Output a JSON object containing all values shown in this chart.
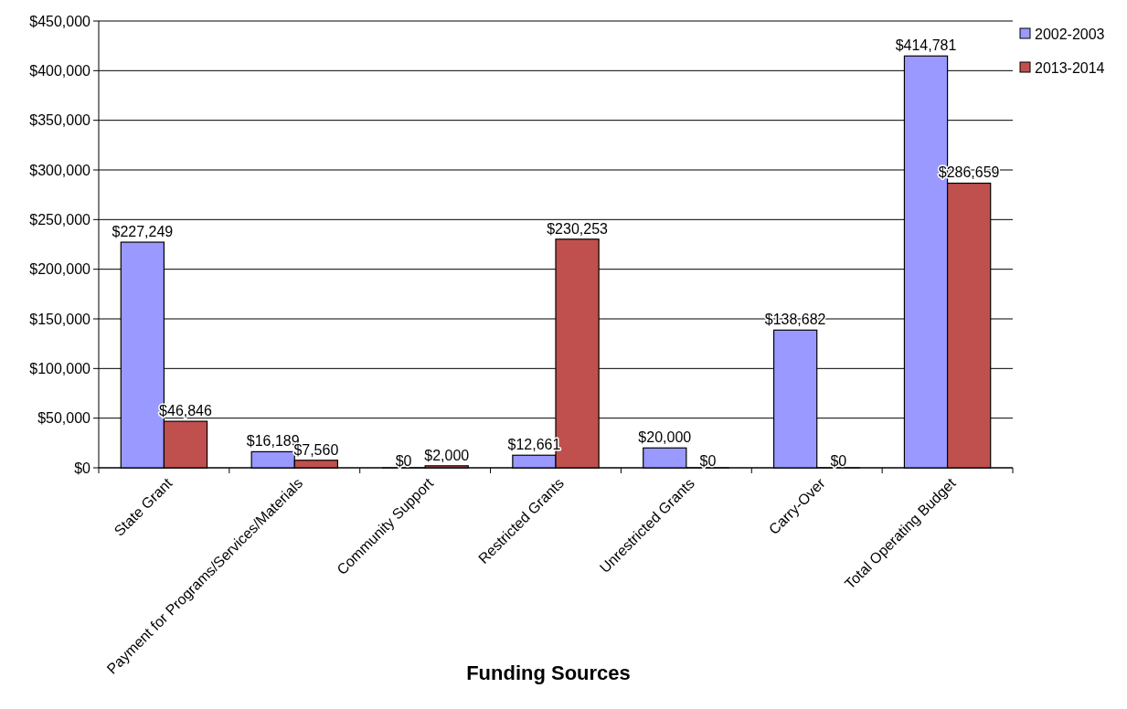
{
  "chart_data": {
    "type": "bar",
    "xlabel": "Funding Sources",
    "categories": [
      "State Grant",
      "Payment for Programs/Services/Materials",
      "Community Support",
      "Restricted Grants",
      "Unrestricted Grants",
      "Carry-Over",
      "Total Operating Budget"
    ],
    "series": [
      {
        "name": "2002-2003",
        "color": "#9999ff",
        "values": [
          227249,
          16189,
          0,
          12661,
          20000,
          138682,
          414781
        ],
        "value_labels": [
          "$227,249",
          "$16,189",
          "$0",
          "$12,661",
          "$20,000",
          "$138,682",
          "$414,781"
        ]
      },
      {
        "name": "2013-2014",
        "color": "#c0504d",
        "values": [
          46846,
          7560,
          2000,
          230253,
          0,
          0,
          286659
        ],
        "value_labels": [
          "$46,846",
          "$7,560",
          "$2,000",
          "$230,253",
          "$0",
          "$0",
          "$286,659"
        ]
      }
    ],
    "ylim": [
      0,
      450000
    ],
    "yticks": [
      {
        "value": 0,
        "label": "$0"
      },
      {
        "value": 50000,
        "label": "$50,000"
      },
      {
        "value": 100000,
        "label": "$100,000"
      },
      {
        "value": 150000,
        "label": "$150,000"
      },
      {
        "value": 200000,
        "label": "$200,000"
      },
      {
        "value": 250000,
        "label": "$250,000"
      },
      {
        "value": 300000,
        "label": "$300,000"
      },
      {
        "value": 350000,
        "label": "$350,000"
      },
      {
        "value": 400000,
        "label": "$400,000"
      },
      {
        "value": 450000,
        "label": "$450,000"
      }
    ],
    "grid": "y",
    "legend": "top right"
  }
}
